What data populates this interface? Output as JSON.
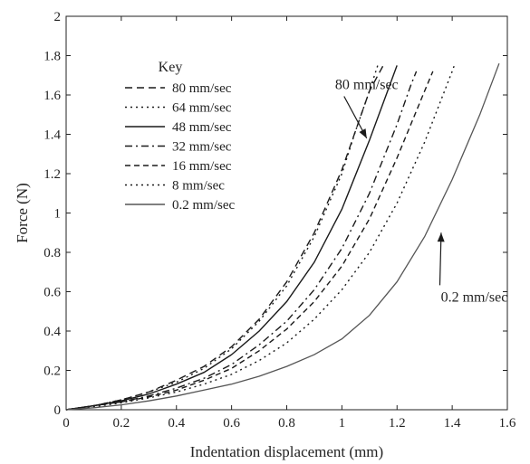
{
  "chart_data": {
    "type": "line",
    "title": "",
    "xlabel": "Indentation displacement (mm)",
    "ylabel": "Force (N)",
    "xlim": [
      0,
      1.6
    ],
    "ylim": [
      0,
      2
    ],
    "xticks": [
      "0",
      "0.2",
      "0.4",
      "0.6",
      "0.8",
      "1",
      "1.2",
      "1.4",
      "1.6"
    ],
    "yticks": [
      "0",
      "0.2",
      "0.4",
      "0.6",
      "0.8",
      "1",
      "1.2",
      "1.4",
      "1.6",
      "1.8",
      "2"
    ],
    "grid": false,
    "legend": {
      "title": "Key",
      "placement": "top-left"
    },
    "series": [
      {
        "name": "80 mm/sec",
        "dash": "8,5",
        "x": [
          0,
          0.1,
          0.2,
          0.3,
          0.4,
          0.5,
          0.6,
          0.7,
          0.8,
          0.9,
          1.0,
          1.05,
          1.1,
          1.15
        ],
        "y": [
          0,
          0.02,
          0.05,
          0.09,
          0.15,
          0.22,
          0.32,
          0.46,
          0.65,
          0.9,
          1.22,
          1.42,
          1.62,
          1.75
        ]
      },
      {
        "name": "64 mm/sec",
        "dash": "2,4",
        "x": [
          0,
          0.1,
          0.2,
          0.3,
          0.4,
          0.5,
          0.6,
          0.7,
          0.8,
          0.9,
          1.0,
          1.05,
          1.1,
          1.13
        ],
        "y": [
          0,
          0.02,
          0.05,
          0.09,
          0.14,
          0.21,
          0.31,
          0.45,
          0.63,
          0.88,
          1.2,
          1.42,
          1.62,
          1.75
        ]
      },
      {
        "name": "48 mm/sec",
        "dash": "",
        "x": [
          0,
          0.1,
          0.2,
          0.3,
          0.4,
          0.5,
          0.6,
          0.7,
          0.8,
          0.9,
          1.0,
          1.1,
          1.15,
          1.2
        ],
        "y": [
          0,
          0.02,
          0.045,
          0.08,
          0.13,
          0.19,
          0.28,
          0.4,
          0.55,
          0.75,
          1.02,
          1.37,
          1.56,
          1.75
        ]
      },
      {
        "name": "32 mm/sec",
        "dash": "8,4,2,4",
        "x": [
          0,
          0.1,
          0.2,
          0.3,
          0.4,
          0.5,
          0.6,
          0.7,
          0.8,
          0.9,
          1.0,
          1.1,
          1.2,
          1.25,
          1.27
        ],
        "y": [
          0,
          0.02,
          0.04,
          0.07,
          0.11,
          0.16,
          0.23,
          0.33,
          0.45,
          0.61,
          0.82,
          1.1,
          1.45,
          1.65,
          1.72
        ]
      },
      {
        "name": "16 mm/sec",
        "dash": "6,4",
        "x": [
          0,
          0.1,
          0.2,
          0.3,
          0.4,
          0.5,
          0.6,
          0.7,
          0.8,
          0.9,
          1.0,
          1.1,
          1.2,
          1.3,
          1.33
        ],
        "y": [
          0,
          0.02,
          0.04,
          0.065,
          0.1,
          0.15,
          0.21,
          0.3,
          0.41,
          0.55,
          0.73,
          0.97,
          1.28,
          1.62,
          1.72
        ]
      },
      {
        "name": "8 mm/sec",
        "dash": "2,4",
        "x": [
          0,
          0.1,
          0.2,
          0.3,
          0.4,
          0.5,
          0.6,
          0.7,
          0.8,
          0.9,
          1.0,
          1.1,
          1.2,
          1.3,
          1.4,
          1.41
        ],
        "y": [
          0,
          0.015,
          0.035,
          0.06,
          0.09,
          0.13,
          0.18,
          0.25,
          0.34,
          0.46,
          0.61,
          0.8,
          1.05,
          1.36,
          1.72,
          1.76
        ]
      },
      {
        "name": "0.2 mm/sec",
        "dash": "",
        "light": true,
        "x": [
          0,
          0.1,
          0.2,
          0.3,
          0.4,
          0.5,
          0.6,
          0.7,
          0.8,
          0.9,
          1.0,
          1.1,
          1.2,
          1.3,
          1.4,
          1.5,
          1.57
        ],
        "y": [
          0,
          0.01,
          0.025,
          0.045,
          0.07,
          0.1,
          0.13,
          0.17,
          0.22,
          0.28,
          0.36,
          0.48,
          0.65,
          0.88,
          1.17,
          1.5,
          1.76
        ]
      }
    ],
    "annotations": [
      {
        "text": "80 mm/sec",
        "tip_x": 1.09,
        "tip_y": 1.38,
        "label_x": 1.09,
        "label_y": 1.63
      },
      {
        "text": "0.2 mm/sec",
        "tip_x": 1.36,
        "tip_y": 0.9,
        "label_x": 1.48,
        "label_y": 0.55
      }
    ]
  }
}
